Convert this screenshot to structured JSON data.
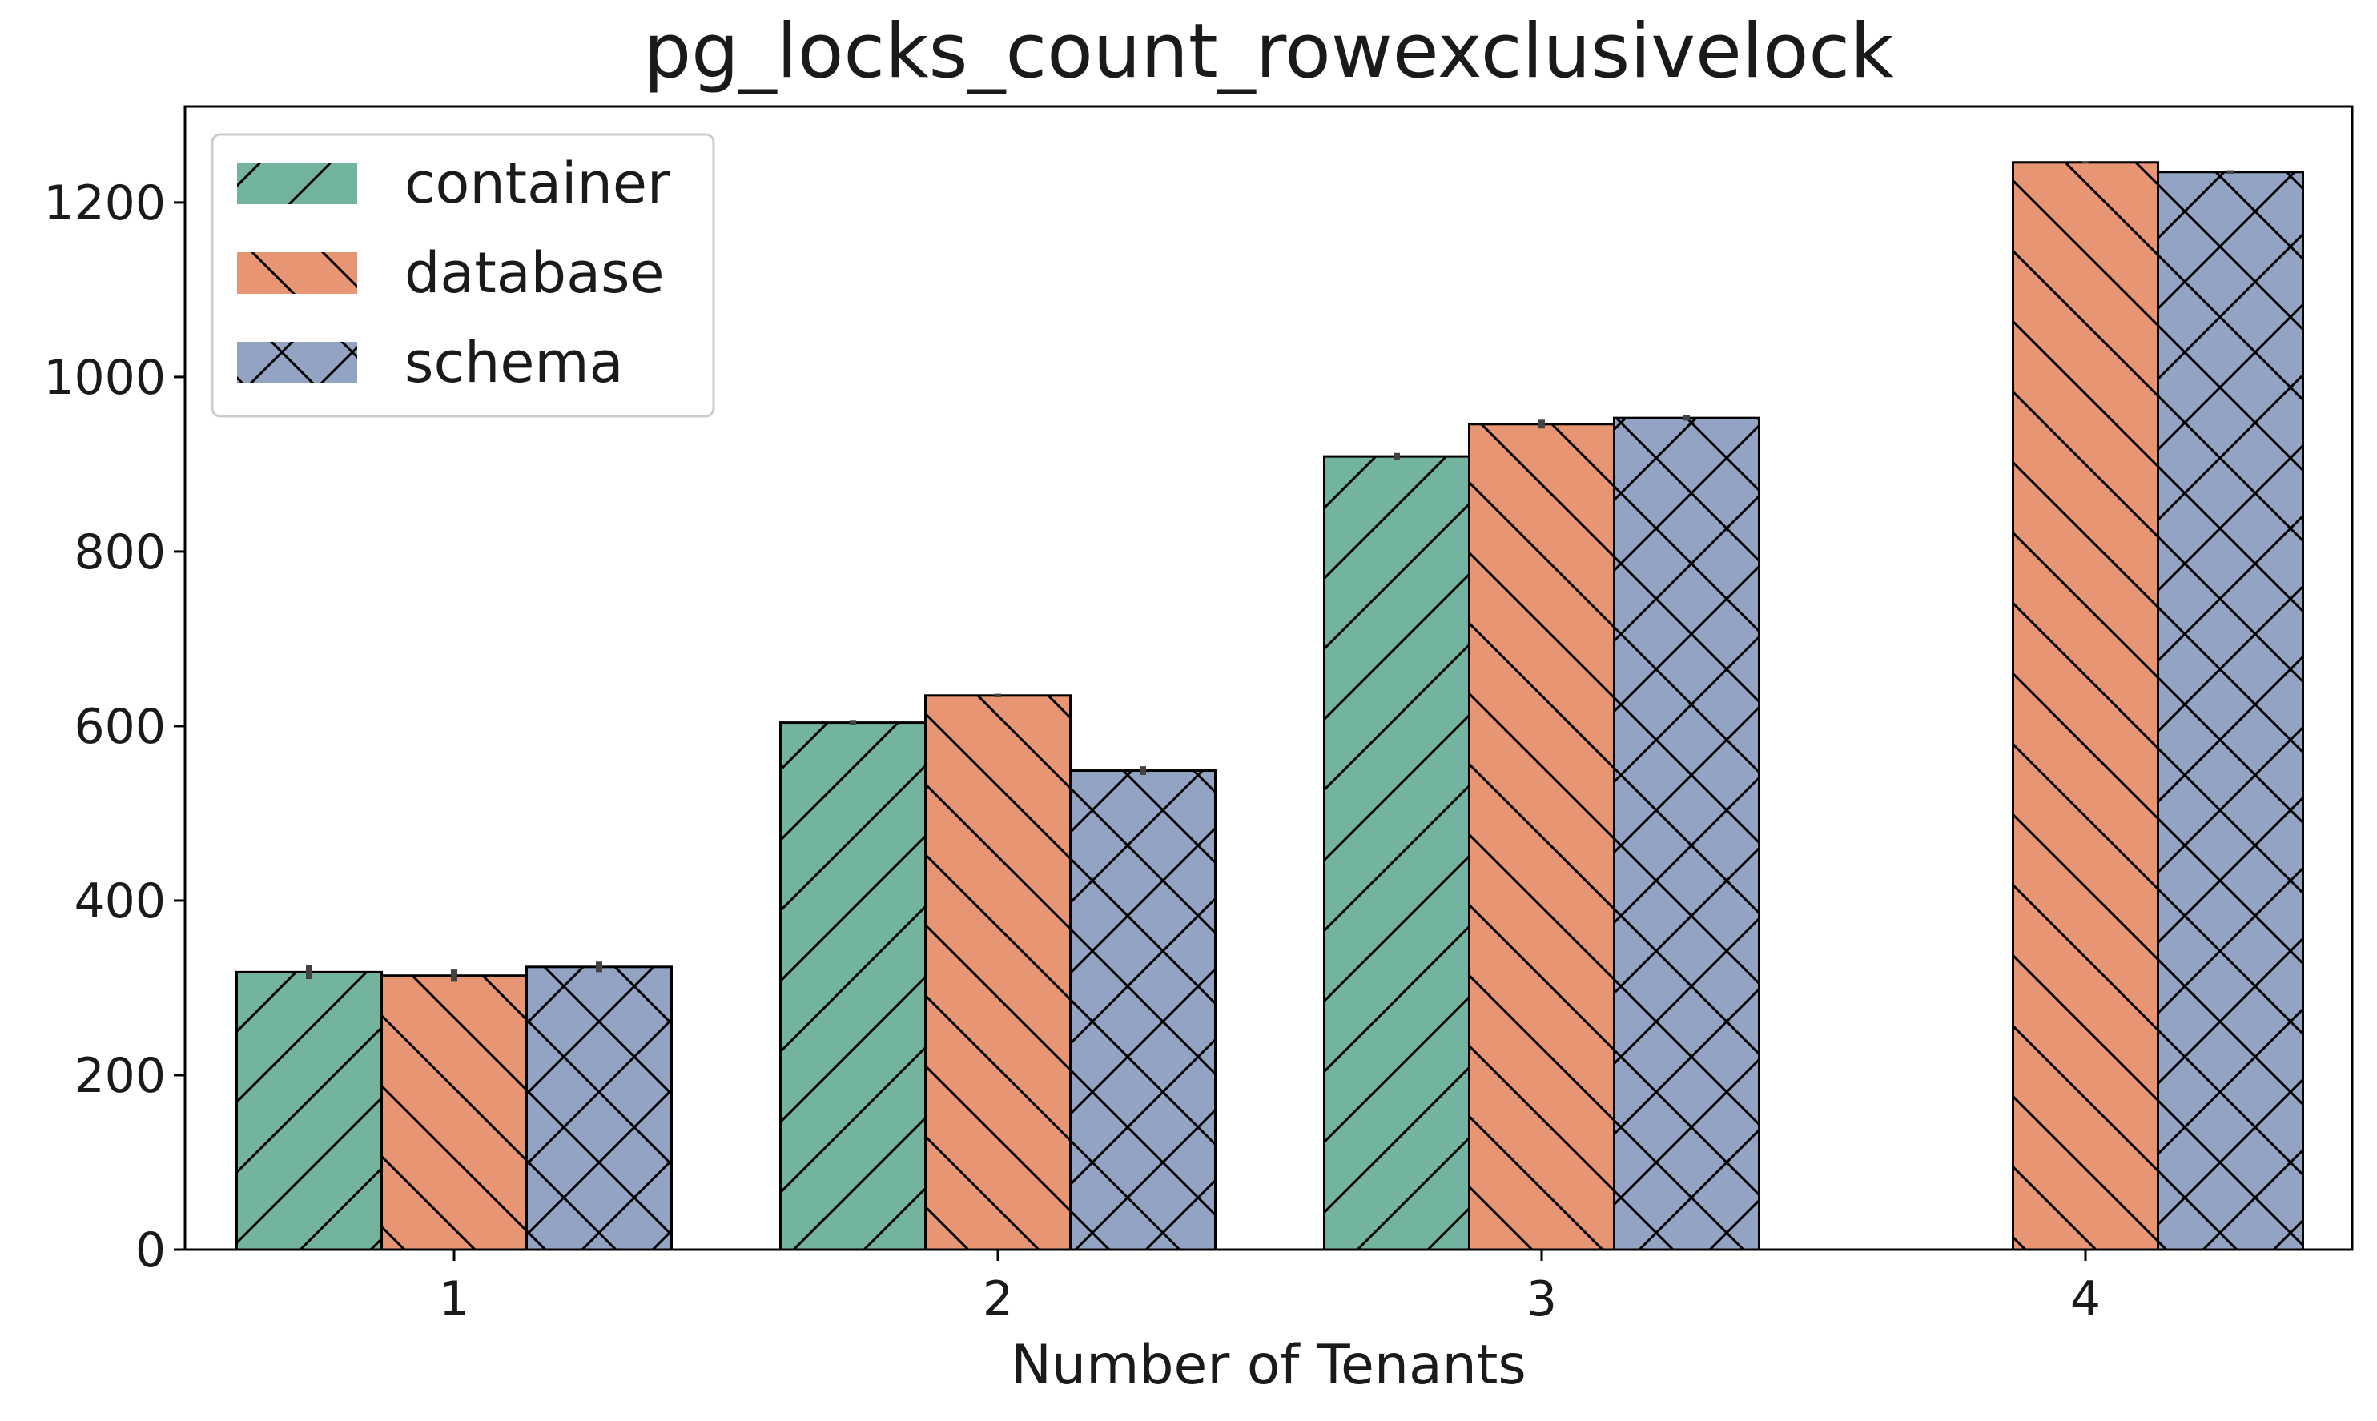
{
  "chart_data": {
    "type": "bar",
    "title": "pg_locks_count_rowexclusivelock",
    "xlabel": "Number of Tenants",
    "ylabel": "",
    "categories": [
      "1",
      "2",
      "3",
      "4"
    ],
    "ylim": [
      0,
      1310
    ],
    "yticks": [
      0,
      200,
      400,
      600,
      800,
      1000,
      1200
    ],
    "grid": false,
    "legend_position": "top-left",
    "series": [
      {
        "name": "container",
        "color": "#72b49f",
        "hatch": "forward-diagonal",
        "values": [
          318,
          604,
          909,
          null
        ],
        "errors": [
          8,
          3,
          4,
          null
        ]
      },
      {
        "name": "database",
        "color": "#e89573",
        "hatch": "back-diagonal",
        "values": [
          314,
          635,
          946,
          1246
        ],
        "errors": [
          7,
          2,
          5,
          1
        ]
      },
      {
        "name": "schema",
        "color": "#93a3c4",
        "hatch": "cross",
        "values": [
          324,
          549,
          953,
          1235
        ],
        "errors": [
          6,
          5,
          3,
          2
        ]
      }
    ]
  }
}
